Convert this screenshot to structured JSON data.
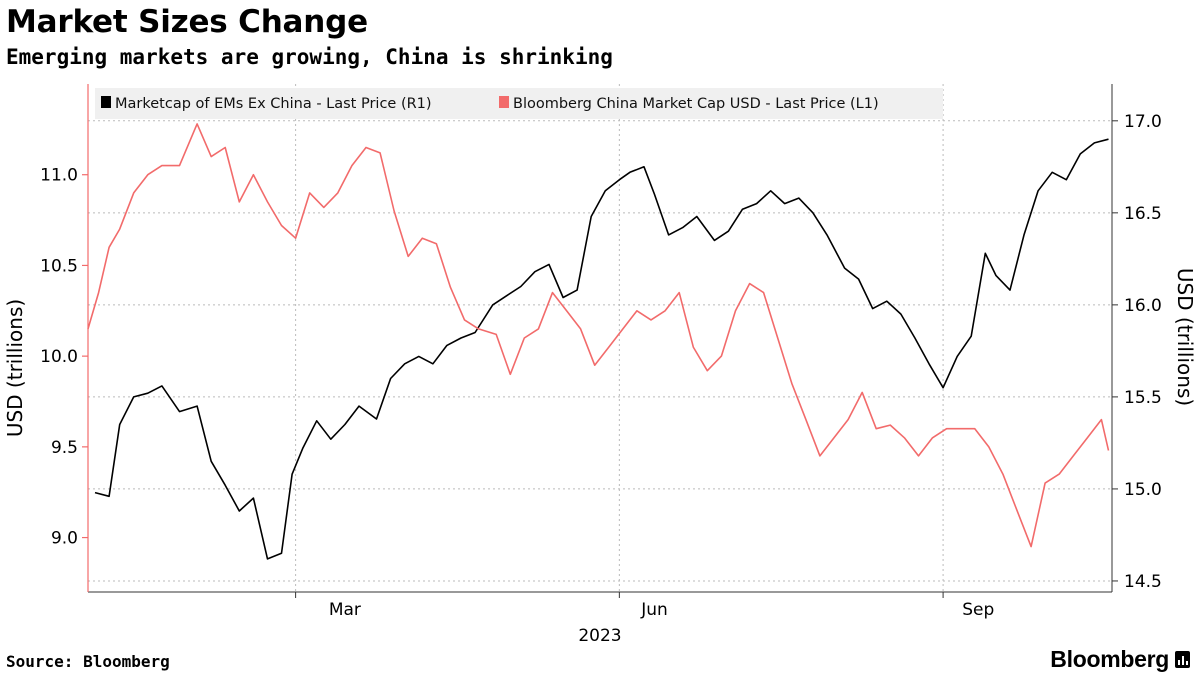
{
  "header": {
    "title": "Market Sizes Change",
    "subtitle": "Emerging markets are growing, China is shrinking"
  },
  "footer": {
    "source": "Source: Bloomberg",
    "brand": "Bloomberg"
  },
  "colors": {
    "em_series": "#000000",
    "china_series": "#f26b6b",
    "grid": "#bbbbbb",
    "legend_bg": "#f0f0f0"
  },
  "chart_data": {
    "type": "line",
    "title": "Market Sizes Change",
    "subtitle": "Emerging markets are growing, China is shrinking",
    "year_label": "2023",
    "x_ticks": [
      "Mar",
      "Jun",
      "Sep"
    ],
    "left_axis": {
      "label": "USD (trillions)",
      "ylim": [
        8.7,
        11.5
      ],
      "ticks": [
        9.0,
        9.5,
        10.0,
        10.5,
        11.0
      ],
      "tick_labels": [
        "9.0",
        "9.5",
        "10.0",
        "10.5",
        "11.0"
      ]
    },
    "right_axis": {
      "label": "USD (trillions)",
      "ylim": [
        14.44,
        17.2
      ],
      "ticks": [
        14.5,
        15.0,
        15.5,
        16.0,
        16.5,
        17.0
      ],
      "tick_labels": [
        "14.5",
        "15.0",
        "15.5",
        "16.0",
        "16.5",
        "17.0"
      ]
    },
    "x_domain": [
      "2023-01-01",
      "2023-10-19"
    ],
    "series": [
      {
        "name": "Marketcap of EMs Ex China - Last Price (R1)",
        "axis": "right",
        "color": "#000000",
        "x": [
          "2023-01-03",
          "2023-01-07",
          "2023-01-10",
          "2023-01-14",
          "2023-01-18",
          "2023-01-22",
          "2023-01-27",
          "2023-02-01",
          "2023-02-05",
          "2023-02-09",
          "2023-02-13",
          "2023-02-17",
          "2023-02-21",
          "2023-02-25",
          "2023-02-28",
          "2023-03-03",
          "2023-03-07",
          "2023-03-11",
          "2023-03-15",
          "2023-03-19",
          "2023-03-24",
          "2023-03-28",
          "2023-04-01",
          "2023-04-05",
          "2023-04-09",
          "2023-04-13",
          "2023-04-17",
          "2023-04-21",
          "2023-04-26",
          "2023-04-30",
          "2023-05-04",
          "2023-05-08",
          "2023-05-12",
          "2023-05-16",
          "2023-05-20",
          "2023-05-24",
          "2023-05-28",
          "2023-06-01",
          "2023-06-04",
          "2023-06-08",
          "2023-06-11",
          "2023-06-15",
          "2023-06-19",
          "2023-06-23",
          "2023-06-28",
          "2023-07-02",
          "2023-07-06",
          "2023-07-10",
          "2023-07-14",
          "2023-07-18",
          "2023-07-22",
          "2023-07-26",
          "2023-07-30",
          "2023-08-04",
          "2023-08-08",
          "2023-08-12",
          "2023-08-16",
          "2023-08-20",
          "2023-08-24",
          "2023-08-28",
          "2023-09-01",
          "2023-09-05",
          "2023-09-09",
          "2023-09-13",
          "2023-09-16",
          "2023-09-20",
          "2023-09-24",
          "2023-09-28",
          "2023-10-02",
          "2023-10-06",
          "2023-10-10",
          "2023-10-14",
          "2023-10-18"
        ],
        "values": [
          14.98,
          14.96,
          15.35,
          15.5,
          15.52,
          15.56,
          15.42,
          15.45,
          15.15,
          15.02,
          14.88,
          14.95,
          14.62,
          14.65,
          15.08,
          15.22,
          15.37,
          15.27,
          15.35,
          15.45,
          15.38,
          15.6,
          15.68,
          15.72,
          15.68,
          15.78,
          15.82,
          15.85,
          16.0,
          16.05,
          16.1,
          16.18,
          16.22,
          16.04,
          16.08,
          16.48,
          16.62,
          16.68,
          16.72,
          16.75,
          16.6,
          16.38,
          16.42,
          16.48,
          16.35,
          16.4,
          16.52,
          16.55,
          16.62,
          16.55,
          16.58,
          16.5,
          16.38,
          16.2,
          16.14,
          15.98,
          16.02,
          15.95,
          15.82,
          15.68,
          15.55,
          15.72,
          15.83,
          16.28,
          16.16,
          16.08,
          16.38,
          16.62,
          16.72,
          16.68,
          16.82,
          16.88,
          16.9
        ]
      },
      {
        "name": "Bloomberg China Market Cap USD - Last Price (L1)",
        "axis": "left",
        "color": "#f26b6b",
        "x": [
          "2023-01-01",
          "2023-01-04",
          "2023-01-07",
          "2023-01-10",
          "2023-01-14",
          "2023-01-18",
          "2023-01-22",
          "2023-01-27",
          "2023-02-01",
          "2023-02-05",
          "2023-02-09",
          "2023-02-13",
          "2023-02-17",
          "2023-02-21",
          "2023-02-25",
          "2023-03-01",
          "2023-03-05",
          "2023-03-09",
          "2023-03-13",
          "2023-03-17",
          "2023-03-21",
          "2023-03-25",
          "2023-03-29",
          "2023-04-02",
          "2023-04-06",
          "2023-04-10",
          "2023-04-14",
          "2023-04-18",
          "2023-04-22",
          "2023-04-27",
          "2023-05-01",
          "2023-05-05",
          "2023-05-09",
          "2023-05-13",
          "2023-05-17",
          "2023-05-21",
          "2023-05-25",
          "2023-05-29",
          "2023-06-02",
          "2023-06-06",
          "2023-06-10",
          "2023-06-14",
          "2023-06-18",
          "2023-06-22",
          "2023-06-26",
          "2023-06-30",
          "2023-07-04",
          "2023-07-08",
          "2023-07-12",
          "2023-07-16",
          "2023-07-20",
          "2023-07-24",
          "2023-07-28",
          "2023-08-01",
          "2023-08-05",
          "2023-08-09",
          "2023-08-13",
          "2023-08-17",
          "2023-08-21",
          "2023-08-25",
          "2023-08-29",
          "2023-09-02",
          "2023-09-06",
          "2023-09-10",
          "2023-09-14",
          "2023-09-18",
          "2023-09-22",
          "2023-09-26",
          "2023-09-30",
          "2023-10-04",
          "2023-10-08",
          "2023-10-12",
          "2023-10-16",
          "2023-10-18"
        ],
        "values": [
          10.15,
          10.35,
          10.6,
          10.7,
          10.9,
          11.0,
          11.05,
          11.05,
          11.28,
          11.1,
          11.15,
          10.85,
          11.0,
          10.85,
          10.72,
          10.65,
          10.9,
          10.82,
          10.9,
          11.05,
          11.15,
          11.12,
          10.8,
          10.55,
          10.65,
          10.62,
          10.38,
          10.2,
          10.15,
          10.12,
          9.9,
          10.1,
          10.15,
          10.35,
          10.25,
          10.15,
          9.95,
          10.05,
          10.15,
          10.25,
          10.2,
          10.25,
          10.35,
          10.05,
          9.92,
          10.0,
          10.25,
          10.4,
          10.35,
          10.1,
          9.85,
          9.65,
          9.45,
          9.55,
          9.65,
          9.8,
          9.6,
          9.62,
          9.55,
          9.45,
          9.55,
          9.6,
          9.6,
          9.6,
          9.5,
          9.35,
          9.15,
          8.95,
          9.3,
          9.35,
          9.45,
          9.55,
          9.65,
          9.48
        ]
      }
    ]
  }
}
